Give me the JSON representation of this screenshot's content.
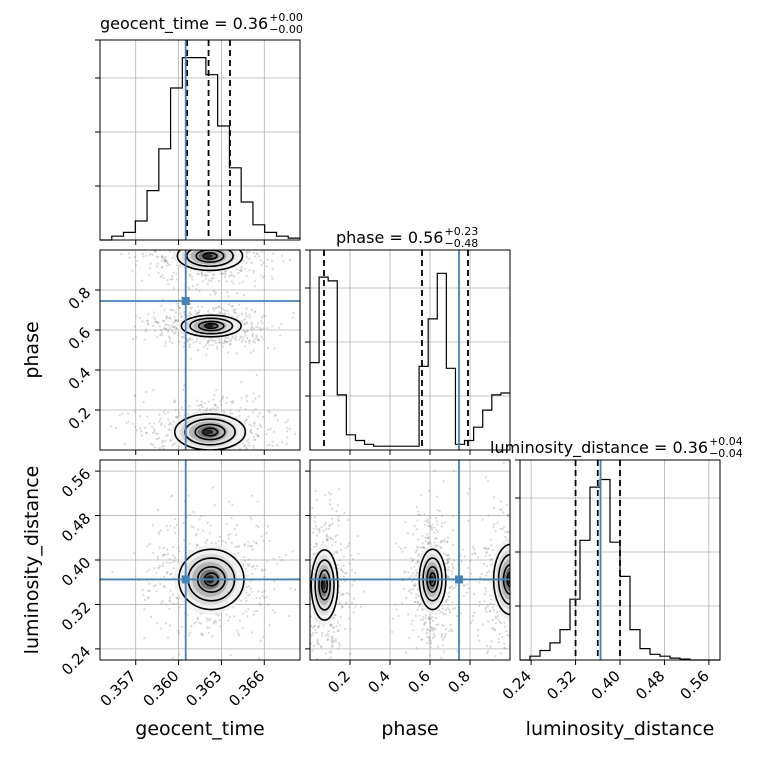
{
  "chart_data": {
    "type": "corner",
    "parameters": [
      "geocent_time",
      "phase",
      "luminosity_distance"
    ],
    "ranges": {
      "geocent_time": [
        0.3545,
        0.3685
      ],
      "phase": [
        0.0,
        1.0
      ],
      "luminosity_distance": [
        0.22,
        0.58
      ]
    },
    "truths": {
      "geocent_time": 0.3605,
      "phase": 0.745,
      "luminosity_distance": 0.365
    },
    "truth_color": "#4682b4",
    "ticks": {
      "geocent_time": [
        "0.357",
        "0.360",
        "0.363",
        "0.366"
      ],
      "phase": [
        "0.2",
        "0.4",
        "0.6",
        "0.8"
      ],
      "luminosity_distance": [
        "0.24",
        "0.32",
        "0.40",
        "0.48",
        "0.56"
      ]
    },
    "titles": [
      {
        "param": "geocent_time",
        "text": "geocent_time = 0.36",
        "sup": "+0.00",
        "sub": "−0.00"
      },
      {
        "param": "phase",
        "text": "phase = 0.56",
        "sup": "+0.23",
        "sub": "−0.48"
      },
      {
        "param": "luminosity_distance",
        "text": "luminosity_distance = 0.36",
        "sup": "+0.04",
        "sub": "−0.04"
      }
    ],
    "quantiles": {
      "geocent_time": [
        0.3606,
        0.3621,
        0.3636
      ],
      "phase": [
        0.07,
        0.56,
        0.79
      ],
      "luminosity_distance": [
        0.32,
        0.36,
        0.4
      ]
    },
    "histograms": {
      "geocent_time": [
        0,
        0.02,
        0.04,
        0.1,
        0.26,
        0.48,
        0.8,
        0.96,
        0.96,
        0.87,
        0.6,
        0.38,
        0.2,
        0.08,
        0.04,
        0.02,
        0.01
      ],
      "phase": [
        0.46,
        0.91,
        0.89,
        0.29,
        0.08,
        0.05,
        0.03,
        0.02,
        0.02,
        0.02,
        0.02,
        0.02,
        0.44,
        0.69,
        0.93,
        0.43,
        0.03,
        0.05,
        0.12,
        0.21,
        0.29,
        0.3
      ],
      "luminosity_distance": [
        0,
        0.02,
        0.05,
        0.09,
        0.16,
        0.32,
        0.63,
        0.91,
        0.95,
        0.62,
        0.44,
        0.16,
        0.06,
        0.03,
        0.02,
        0.01,
        0.005,
        0,
        0,
        0
      ]
    },
    "blobs_2d": [
      {
        "x": "geocent_time",
        "y": "phase",
        "cx": 0.3622,
        "cy": 0.62,
        "sx": 0.0011,
        "sy": 0.03
      },
      {
        "x": "geocent_time",
        "y": "phase",
        "cx": 0.3621,
        "cy": 0.09,
        "sx": 0.0013,
        "sy": 0.05
      },
      {
        "x": "geocent_time",
        "y": "phase",
        "cx": 0.3621,
        "cy": 0.97,
        "sx": 0.0012,
        "sy": 0.04
      },
      {
        "x": "geocent_time",
        "y": "luminosity_distance",
        "cx": 0.3622,
        "cy": 0.365,
        "sx": 0.0012,
        "sy": 0.03
      },
      {
        "x": "phase",
        "y": "luminosity_distance",
        "cx": 0.07,
        "cy": 0.355,
        "sx": 0.035,
        "sy": 0.035
      },
      {
        "x": "phase",
        "y": "luminosity_distance",
        "cx": 0.61,
        "cy": 0.365,
        "sx": 0.035,
        "sy": 0.03
      },
      {
        "x": "phase",
        "y": "luminosity_distance",
        "cx": 1.0,
        "cy": 0.365,
        "sx": 0.045,
        "sy": 0.035
      }
    ],
    "axis_labels": {
      "x": [
        "geocent_time",
        "phase",
        "luminosity_distance"
      ],
      "y": [
        "phase",
        "luminosity_distance"
      ]
    }
  }
}
